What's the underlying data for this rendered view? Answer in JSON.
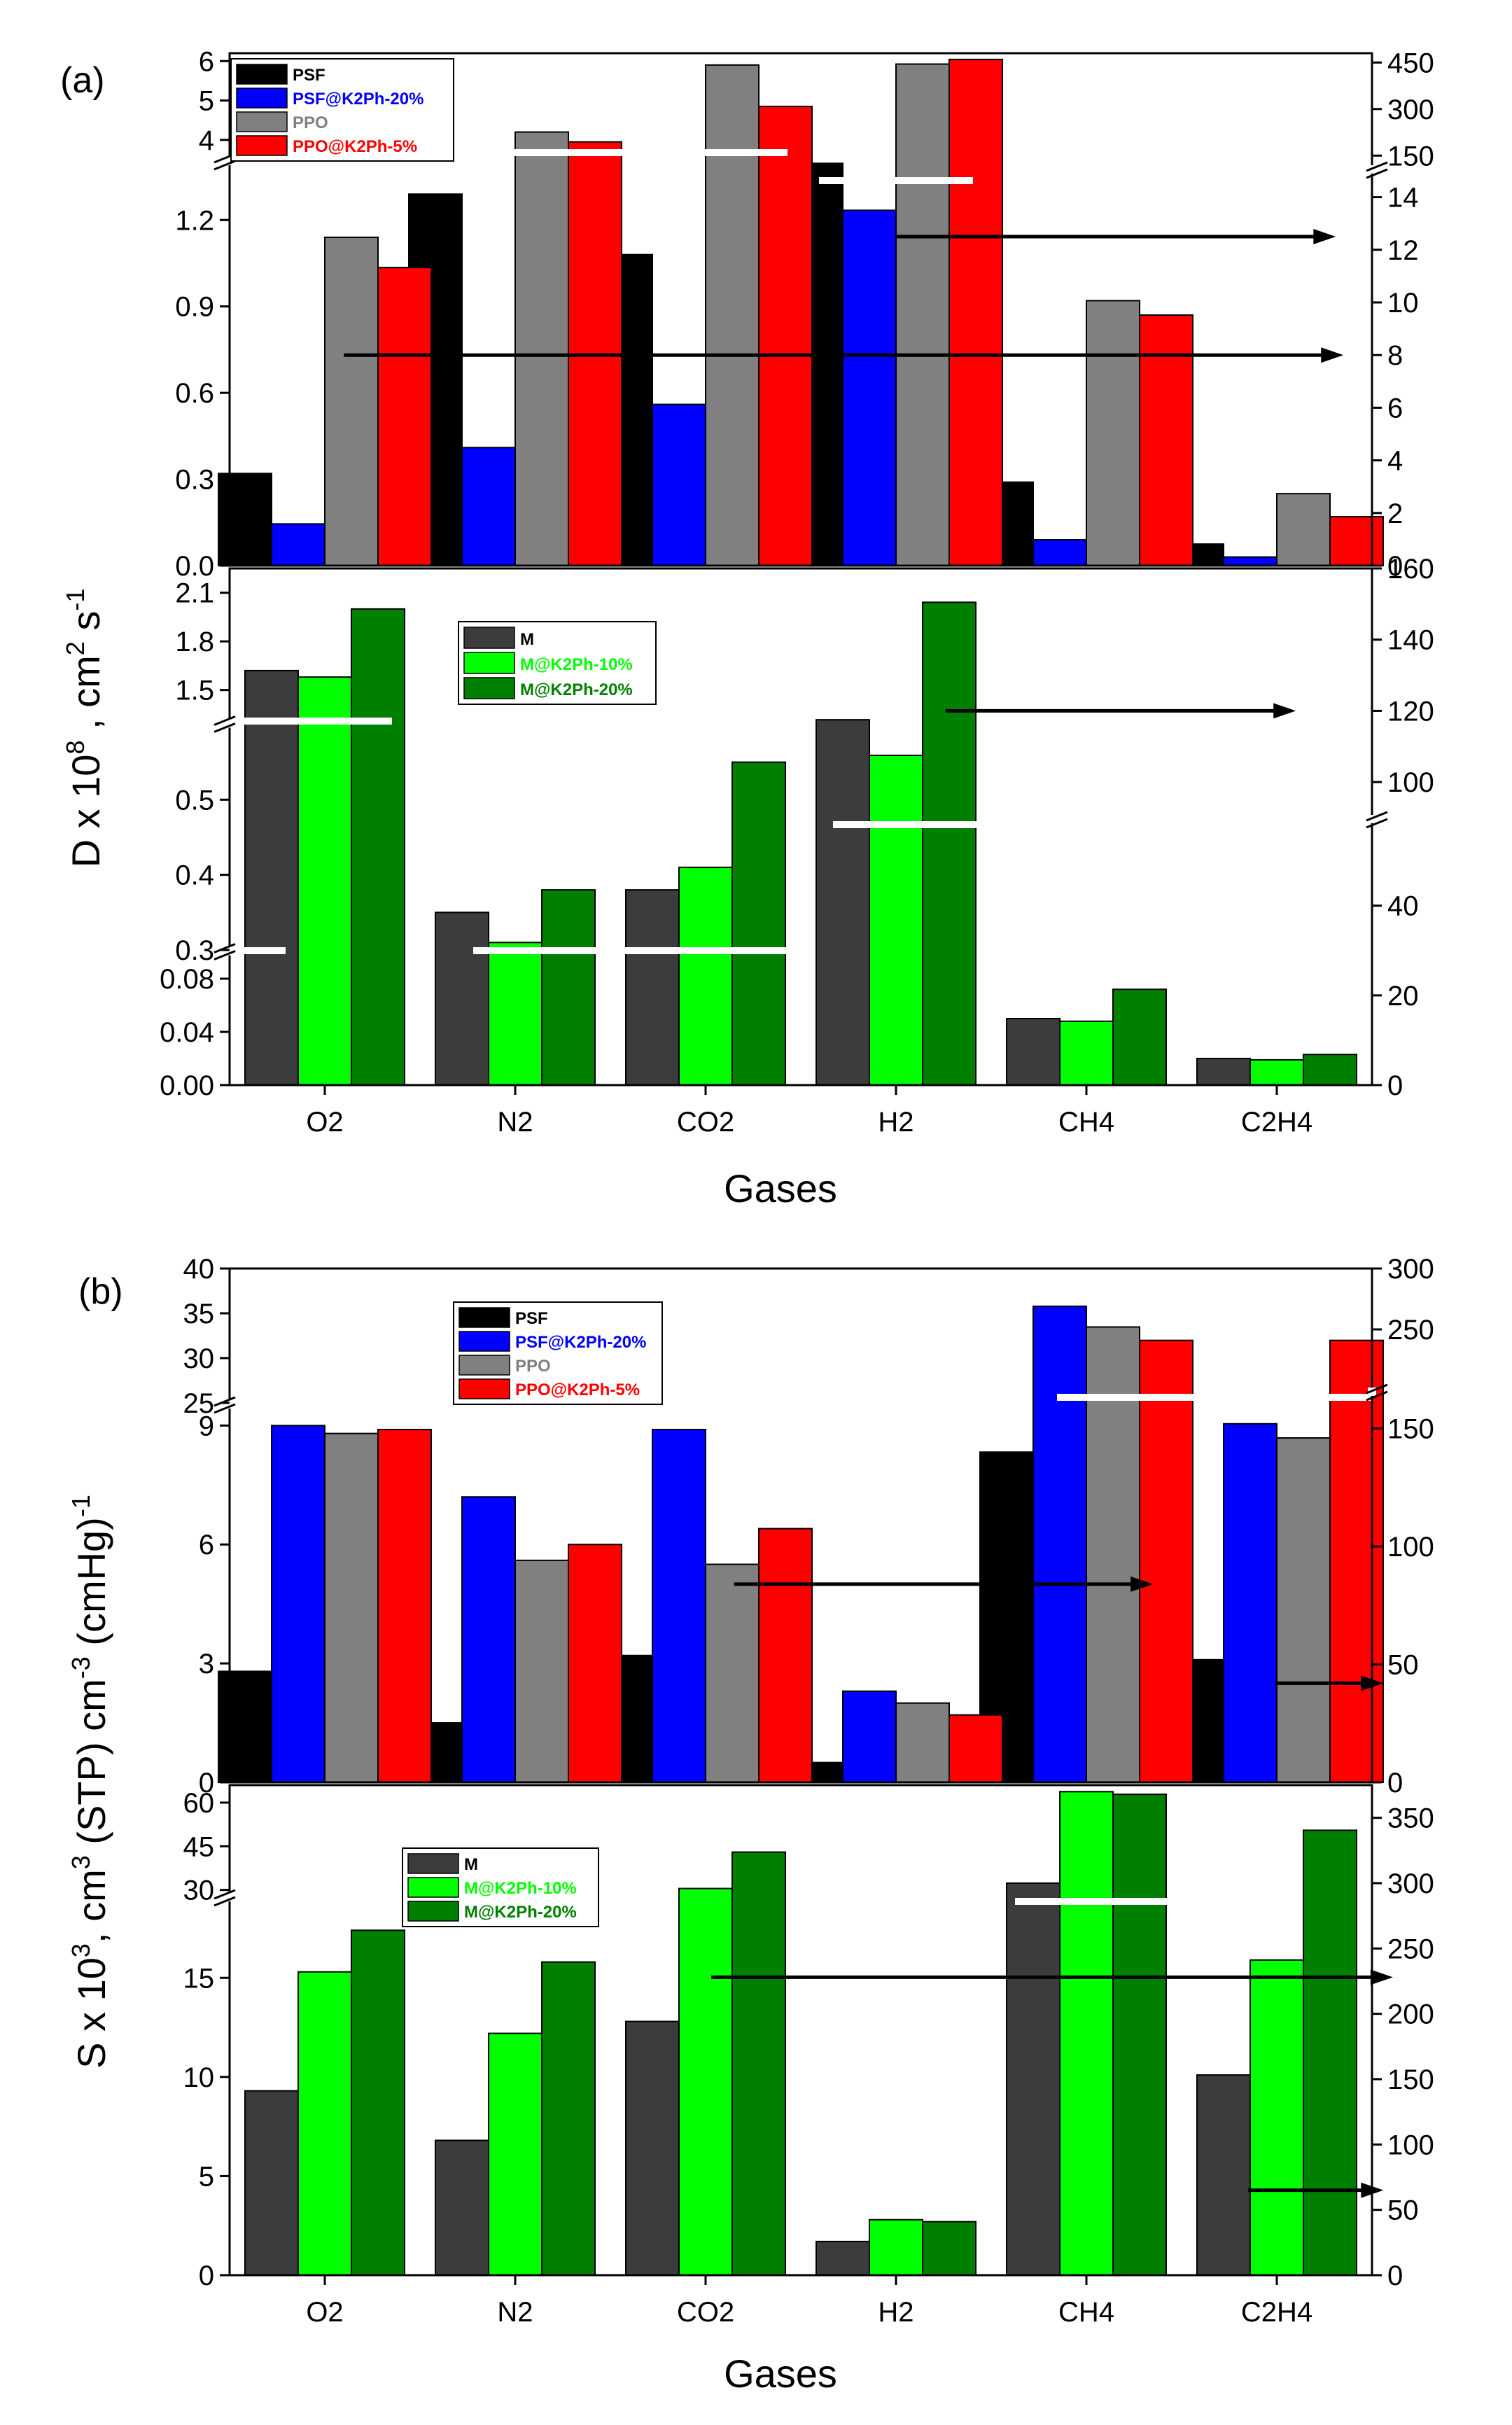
{
  "figure": {
    "categories": [
      "O2",
      "N2",
      "CO2",
      "H2",
      "CH4",
      "C2H4"
    ],
    "colors": {
      "PSF": "#000000",
      "PSF@K2Ph-20%": "#0000ff",
      "PPO": "#808080",
      "PPO@K2Ph-5%": "#ff0000",
      "M": "#3c3c3c",
      "M@K2Ph-10%": "#00ff00",
      "M@K2Ph-20%": "#008000"
    }
  },
  "chart_data": [
    {
      "type": "bar",
      "panel_label": "(a)",
      "xlabel": "Gases",
      "ylabel": "D x 10^8 , cm^2 s^-1",
      "categories": [
        "O2",
        "N2",
        "CO2",
        "H2",
        "CH4",
        "C2H4"
      ],
      "subplots": [
        {
          "name": "upper",
          "legend": {
            "placement": "top-left",
            "entries": [
              "PSF",
              "PSF@K2Ph-20%",
              "PPO",
              "PPO@K2Ph-5%"
            ]
          },
          "left_axis": {
            "segments": [
              {
                "range": [
                  0,
                  1.4
                ],
                "ticks": [
                  "0.0",
                  "0.3",
                  "0.6",
                  "0.9",
                  "1.2"
                ],
                "tick_values": [
                  0,
                  0.3,
                  0.6,
                  0.9,
                  1.2
                ]
              },
              {
                "range": [
                  3.5,
                  6.2
                ],
                "ticks": [
                  "4",
                  "5",
                  "6"
                ],
                "tick_values": [
                  4,
                  5,
                  6
                ]
              }
            ]
          },
          "right_axis": {
            "segments": [
              {
                "range": [
                  0,
                  15
                ],
                "ticks": [
                  "0",
                  "2",
                  "4",
                  "6",
                  "8",
                  "10",
                  "12",
                  "14"
                ],
                "tick_values": [
                  0,
                  2,
                  4,
                  6,
                  8,
                  10,
                  12,
                  14
                ]
              },
              {
                "range": [
                  110,
                  480
                ],
                "ticks": [
                  "150",
                  "300",
                  "450"
                ],
                "tick_values": [
                  150,
                  300,
                  450
                ]
              }
            ]
          },
          "series": [
            {
              "name": "PSF",
              "axis": [
                "left",
                "left",
                "left",
                "right",
                "left",
                "left"
              ],
              "values": [
                0.32,
                1.29,
                1.08,
                125,
                0.29,
                0.075
              ]
            },
            {
              "name": "PSF@K2Ph-20%",
              "axis": [
                "left",
                "left",
                "left",
                "right",
                "left",
                "left"
              ],
              "values": [
                0.145,
                0.41,
                0.56,
                13.5,
                0.09,
                0.03
              ]
            },
            {
              "name": "PPO",
              "axis": [
                "left",
                "left",
                "left",
                "right",
                "left",
                "left"
              ],
              "values": [
                1.14,
                4.2,
                5.9,
                445,
                0.92,
                0.25
              ]
            },
            {
              "name": "PPO@K2Ph-5%",
              "axis": [
                "left",
                "left",
                "left",
                "right",
                "left",
                "left"
              ],
              "values": [
                1.035,
                3.95,
                4.85,
                460,
                0.87,
                0.17
              ]
            }
          ],
          "annotations": [
            {
              "type": "arrow",
              "direction": "right",
              "from_x": 0.1,
              "to_x": 5.35,
              "y_axis": "right",
              "y": 8.0
            },
            {
              "type": "arrow",
              "direction": "right",
              "from_x": 3.0,
              "to_x": 5.31,
              "y_axis": "right",
              "y": 12.5
            }
          ]
        },
        {
          "name": "lower",
          "legend": {
            "placement": "top-center",
            "entries": [
              "M",
              "M@K2Ph-10%",
              "M@K2Ph-20%"
            ]
          },
          "left_axis": {
            "segments": [
              {
                "range": [
                  0,
                  0.1
                ],
                "ticks": [
                  "0.00",
                  "0.04",
                  "0.08"
                ],
                "tick_values": [
                  0,
                  0.04,
                  0.08
                ]
              },
              {
                "range": [
                  0.3,
                  0.6
                ],
                "ticks": [
                  "0.3",
                  "0.4",
                  "0.5"
                ],
                "tick_values": [
                  0.3,
                  0.4,
                  0.5
                ]
              },
              {
                "range": [
                  1.3,
                  2.25
                ],
                "ticks": [
                  "1.5",
                  "1.8",
                  "2.1"
                ],
                "tick_values": [
                  1.5,
                  1.8,
                  2.1
                ]
              }
            ]
          },
          "right_axis": {
            "segments": [
              {
                "range": [
                  0,
                  59
                ],
                "ticks": [
                  "0",
                  "20",
                  "40"
                ],
                "tick_values": [
                  0,
                  20,
                  40
                ]
              },
              {
                "range": [
                  90,
                  160
                ],
                "ticks": [
                  "100",
                  "120",
                  "140",
                  "160"
                ],
                "tick_values": [
                  100,
                  120,
                  140,
                  160
                ]
              }
            ]
          },
          "series": [
            {
              "name": "M",
              "axis": [
                "left",
                "left",
                "left",
                "right",
                "left",
                "left"
              ],
              "values": [
                1.62,
                0.35,
                0.38,
                117.5,
                0.05,
                0.02
              ]
            },
            {
              "name": "M@K2Ph-10%",
              "axis": [
                "left",
                "left",
                "left",
                "right",
                "left",
                "left"
              ],
              "values": [
                1.58,
                0.31,
                0.41,
                107.5,
                0.048,
                0.019
              ]
            },
            {
              "name": "M@K2Ph-20%",
              "axis": [
                "left",
                "left",
                "left",
                "right",
                "left",
                "left"
              ],
              "values": [
                2.0,
                0.38,
                0.55,
                150.5,
                0.072,
                0.023
              ]
            }
          ],
          "annotations": [
            {
              "type": "arrow",
              "direction": "right",
              "from_x": 3.26,
              "to_x": 5.1,
              "y_axis": "right",
              "y": 120
            }
          ]
        }
      ]
    },
    {
      "type": "bar",
      "panel_label": "(b)",
      "xlabel": "Gases",
      "ylabel": "S x 10^3, cm^3 (STP) cm^-3 (cmHg)^-1",
      "categories": [
        "O2",
        "N2",
        "CO2",
        "H2",
        "CH4",
        "C2H4"
      ],
      "subplots": [
        {
          "name": "upper",
          "legend": {
            "placement": "top-center",
            "entries": [
              "PSF",
              "PSF@K2Ph-20%",
              "PPO",
              "PPO@K2Ph-5%"
            ]
          },
          "left_axis": {
            "segments": [
              {
                "range": [
                  0,
                  9.5
                ],
                "ticks": [
                  "0",
                  "3",
                  "6",
                  "9"
                ],
                "tick_values": [
                  0,
                  3,
                  6,
                  9
                ]
              },
              {
                "range": [
                  25,
                  40
                ],
                "ticks": [
                  "25",
                  "30",
                  "35",
                  "40"
                ],
                "tick_values": [
                  25,
                  30,
                  35,
                  40
                ]
              }
            ]
          },
          "right_axis": {
            "segments": [
              {
                "range": [
                  0,
                  165
                ],
                "ticks": [
                  "0",
                  "50",
                  "100",
                  "150"
                ],
                "tick_values": [
                  0,
                  50,
                  100,
                  150
                ]
              },
              {
                "range": [
                  200,
                  300
                ],
                "ticks": [
                  "250",
                  "300"
                ],
                "tick_values": [
                  250,
                  300
                ]
              }
            ]
          },
          "series": [
            {
              "name": "PSF",
              "axis": [
                "left",
                "left",
                "left",
                "left",
                "right",
                "right"
              ],
              "values": [
                2.8,
                1.5,
                3.2,
                0.5,
                140,
                52
              ]
            },
            {
              "name": "PSF@K2Ph-20%",
              "axis": [
                "left",
                "left",
                "left",
                "left",
                "right",
                "right"
              ],
              "values": [
                9.0,
                7.2,
                8.9,
                2.3,
                269,
                152
              ]
            },
            {
              "name": "PPO",
              "axis": [
                "left",
                "left",
                "left",
                "left",
                "right",
                "right"
              ],
              "values": [
                8.8,
                5.6,
                5.5,
                2.0,
                252,
                146
              ]
            },
            {
              "name": "PPO@K2Ph-5%",
              "axis": [
                "left",
                "left",
                "left",
                "left",
                "right",
                "right"
              ],
              "values": [
                8.9,
                6.0,
                6.4,
                1.7,
                241,
                241
              ]
            }
          ],
          "annotations": [
            {
              "type": "arrow",
              "direction": "right",
              "from_x": 2.15,
              "to_x": 4.35,
              "y_axis": "left",
              "y": 5.0
            },
            {
              "type": "arrow",
              "direction": "right",
              "from_x": 4.99,
              "to_x": 5.56,
              "y_axis": "left",
              "y": 2.5
            }
          ]
        },
        {
          "name": "lower",
          "legend": {
            "placement": "top-left",
            "entries": [
              "M",
              "M@K2Ph-10%",
              "M@K2Ph-20%"
            ]
          },
          "left_axis": {
            "segments": [
              {
                "range": [
                  0,
                  19
                ],
                "ticks": [
                  "0",
                  "5",
                  "10",
                  "15"
                ],
                "tick_values": [
                  0,
                  5,
                  10,
                  15
                ]
              },
              {
                "range": [
                  28,
                  66
                ],
                "ticks": [
                  "30",
                  "45",
                  "60"
                ],
                "tick_values": [
                  30,
                  45,
                  60
                ]
              }
            ]
          },
          "right_axis": {
            "segments": [
              {
                "range": [
                  0,
                  375
                ],
                "ticks": [
                  "0",
                  "50",
                  "100",
                  "150",
                  "200",
                  "250",
                  "300",
                  "350"
                ],
                "tick_values": [
                  0,
                  50,
                  100,
                  150,
                  200,
                  250,
                  300,
                  350
                ]
              }
            ]
          },
          "series": [
            {
              "name": "M",
              "axis": [
                "left",
                "left",
                "left",
                "left",
                "right",
                "left"
              ],
              "values": [
                9.3,
                6.8,
                12.8,
                1.7,
                300,
                10.1
              ]
            },
            {
              "name": "M@K2Ph-10%",
              "axis": [
                "left",
                "left",
                "left",
                "left",
                "right",
                "left"
              ],
              "values": [
                15.3,
                12.2,
                30.5,
                2.8,
                370,
                15.9
              ]
            },
            {
              "name": "M@K2Ph-20%",
              "axis": [
                "left",
                "left",
                "left",
                "left",
                "right",
                "left"
              ],
              "values": [
                17.4,
                15.8,
                43.0,
                2.7,
                368,
                50.5
              ]
            }
          ],
          "annotations": [
            {
              "type": "arrow",
              "direction": "right",
              "from_x": 2.03,
              "to_x": 5.61,
              "y_axis": "right",
              "y": 228
            },
            {
              "type": "arrow",
              "direction": "right",
              "from_x": 4.85,
              "to_x": 5.56,
              "y_axis": "right",
              "y": 65
            }
          ]
        }
      ]
    }
  ]
}
